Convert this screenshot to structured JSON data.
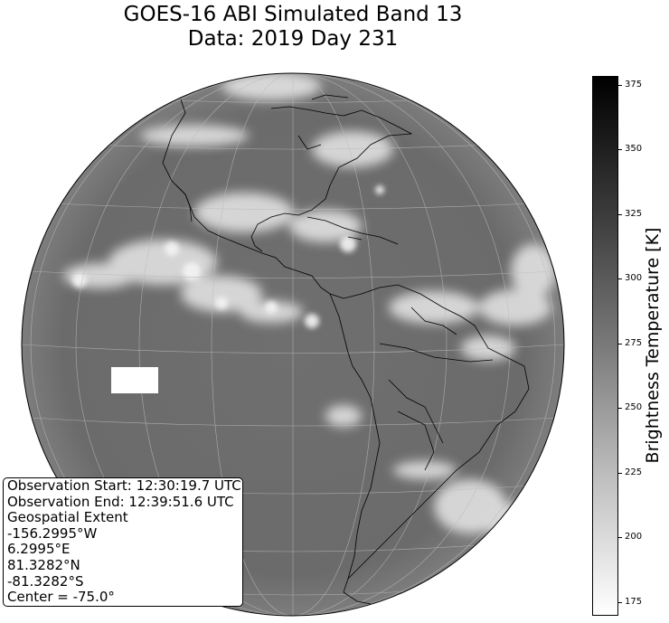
{
  "chart": {
    "title_line1": "GOES-16 ABI Simulated Band 13",
    "title_line2": "Data: 2019 Day 231"
  },
  "colorbar": {
    "label": "Brightness Temperature [K]",
    "ticks": [
      {
        "value": 375,
        "label": "375"
      },
      {
        "value": 350,
        "label": "350"
      },
      {
        "value": 325,
        "label": "325"
      },
      {
        "value": 300,
        "label": "300"
      },
      {
        "value": 275,
        "label": "275"
      },
      {
        "value": 250,
        "label": "250"
      },
      {
        "value": 225,
        "label": "225"
      },
      {
        "value": 200,
        "label": "200"
      },
      {
        "value": 175,
        "label": "175"
      }
    ],
    "colormap": "gray (reversed: high = black, low = white)"
  },
  "info_box": {
    "lines": [
      "Observation Start: 12:30:19.7 UTC",
      "Observation End: 12:39:51.6 UTC",
      "Geospatial Extent",
      "-156.2995°W",
      "6.2995°E",
      "81.3282°N",
      "-81.3282°S",
      "Center = -75.0°"
    ]
  },
  "chart_data": {
    "type": "heatmap",
    "title": "GOES-16 ABI Simulated Band 13\nData: 2019 Day 231",
    "projection": "geostationary full disk",
    "center_longitude": -75.0,
    "extent": {
      "west": -156.2995,
      "east": 6.2995,
      "north": 81.3282,
      "south": -81.3282
    },
    "colorbar_label": "Brightness Temperature [K]",
    "colorbar_range": [
      170,
      378
    ],
    "colorbar_ticks": [
      175,
      200,
      225,
      250,
      275,
      300,
      325,
      350,
      375
    ],
    "grid": true,
    "coastlines": true,
    "colors": {
      "background_disk": "#6e6e6e",
      "clouds": "#ececec",
      "coastline": "#000000",
      "gridline": "#bdbdbd"
    }
  }
}
